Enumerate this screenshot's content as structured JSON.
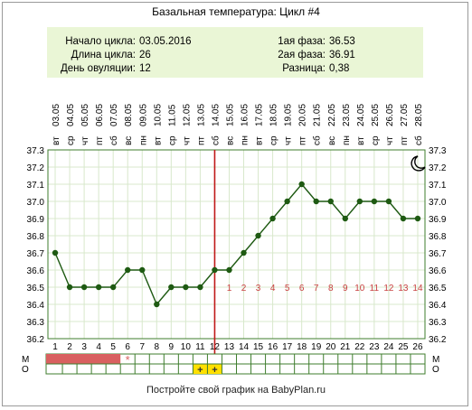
{
  "title": "Базальная температура: Цикл #4",
  "info": {
    "cycle_start_label": "Начало цикла:",
    "cycle_start_value": "03.05.2016",
    "cycle_length_label": "Длина цикла:",
    "cycle_length_value": "26",
    "ovulation_day_label": "День овуляции:",
    "ovulation_day_value": "12",
    "phase1_label": "1ая фаза:",
    "phase1_value": "36.53",
    "phase2_label": "2ая фаза:",
    "phase2_value": "36.91",
    "difference_label": "Разница:",
    "difference_value": "0,38"
  },
  "footer": "Постройте свой график на BabyPlan.ru",
  "chart_data": {
    "type": "line",
    "dates": [
      "03.05",
      "04.05",
      "05.05",
      "06.05",
      "07.05",
      "08.05",
      "09.05",
      "10.05",
      "11.05",
      "12.05",
      "13.05",
      "14.05",
      "15.05",
      "16.05",
      "17.05",
      "18.05",
      "19.05",
      "20.05",
      "21.05",
      "22.05",
      "23.05",
      "24.05",
      "25.05",
      "26.05",
      "27.05",
      "28.05"
    ],
    "weekdays": [
      "вт",
      "ср",
      "чт",
      "пт",
      "сб",
      "вс",
      "пн",
      "вт",
      "ср",
      "чт",
      "пт",
      "сб",
      "вс",
      "пн",
      "вт",
      "ср",
      "чт",
      "пт",
      "сб",
      "вс",
      "пн",
      "вт",
      "ср",
      "чт",
      "пт",
      "сб"
    ],
    "days": [
      "1",
      "2",
      "3",
      "4",
      "5",
      "6",
      "7",
      "8",
      "9",
      "10",
      "11",
      "12",
      "13",
      "14",
      "15",
      "16",
      "17",
      "18",
      "19",
      "20",
      "21",
      "22",
      "23",
      "24",
      "25",
      "26"
    ],
    "series": [
      {
        "values": [
          36.7,
          36.5,
          36.5,
          36.5,
          36.5,
          36.6,
          36.6,
          36.4,
          36.5,
          36.5,
          36.5,
          36.6,
          36.6,
          36.7,
          36.8,
          36.9,
          37.0,
          37.1,
          37.0,
          37.0,
          36.9,
          37.0,
          37.0,
          37.0,
          36.9,
          36.9
        ]
      }
    ],
    "y_ticks": [
      "36.2",
      "36.3",
      "36.4",
      "36.5",
      "36.6",
      "36.7",
      "36.8",
      "36.9",
      "37.0",
      "37.1",
      "37.2",
      "37.3"
    ],
    "ylim": [
      36.2,
      37.3
    ],
    "ovulation_day": 12,
    "phase2_day_labels": [
      "1",
      "2",
      "3",
      "4",
      "5",
      "6",
      "7",
      "8",
      "9",
      "10",
      "11",
      "12",
      "13",
      "14"
    ],
    "row_labels": [
      "М",
      "О"
    ],
    "menstruation_days": [
      1,
      2,
      3,
      4,
      5
    ],
    "asterisk_day": 6,
    "asterisk_symbol": "*",
    "intercourse_days": [
      11,
      12
    ],
    "intercourse_symbol": "+",
    "grid": true,
    "colors": {
      "line": "#1e5a12",
      "ovulation_line": "#c01818",
      "phase_label": "#c84040",
      "menstruation": "#d96060",
      "intercourse": "#ffe000",
      "grid": "#d8e8cc",
      "plot_border": "#3f7d2e",
      "info_bg": "#eaf6d6"
    },
    "icon": "moon-icon"
  }
}
